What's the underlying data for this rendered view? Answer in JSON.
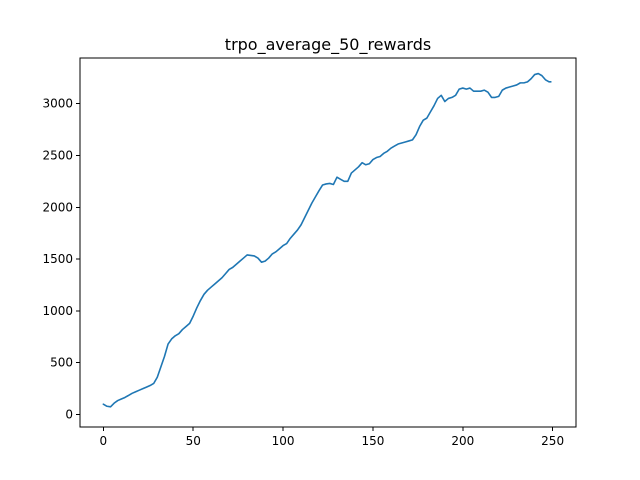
{
  "chart_data": {
    "type": "line",
    "title": "trpo_average_50_rewards",
    "xlabel": "",
    "ylabel": "",
    "xlim": [
      -13,
      263
    ],
    "ylim": [
      -120,
      3440
    ],
    "xticks": [
      0,
      50,
      100,
      150,
      200,
      250
    ],
    "yticks": [
      0,
      500,
      1000,
      1500,
      2000,
      2500,
      3000
    ],
    "grid": false,
    "legend": "none",
    "series": [
      {
        "color": "#1f77b4",
        "x": [
          0,
          2,
          4,
          6,
          8,
          10,
          12,
          14,
          16,
          18,
          20,
          22,
          24,
          26,
          28,
          30,
          32,
          34,
          36,
          38,
          40,
          42,
          44,
          46,
          48,
          50,
          52,
          54,
          56,
          58,
          60,
          62,
          64,
          66,
          68,
          70,
          72,
          74,
          76,
          78,
          80,
          82,
          84,
          86,
          88,
          90,
          92,
          94,
          96,
          98,
          100,
          102,
          104,
          106,
          108,
          110,
          112,
          114,
          116,
          118,
          120,
          122,
          124,
          126,
          128,
          130,
          132,
          134,
          136,
          138,
          140,
          142,
          144,
          146,
          148,
          150,
          152,
          154,
          156,
          158,
          160,
          162,
          164,
          166,
          168,
          170,
          172,
          174,
          176,
          178,
          180,
          182,
          184,
          186,
          188,
          190,
          192,
          194,
          196,
          198,
          200,
          202,
          204,
          206,
          208,
          210,
          212,
          214,
          216,
          218,
          220,
          222,
          224,
          226,
          228,
          230,
          232,
          234,
          236,
          238,
          240,
          242,
          244,
          246,
          248,
          249
        ],
        "y": [
          100,
          80,
          75,
          110,
          135,
          150,
          165,
          185,
          205,
          220,
          235,
          250,
          265,
          280,
          300,
          360,
          460,
          560,
          680,
          730,
          760,
          780,
          820,
          850,
          880,
          950,
          1030,
          1100,
          1160,
          1200,
          1230,
          1260,
          1290,
          1320,
          1360,
          1400,
          1420,
          1450,
          1480,
          1510,
          1540,
          1535,
          1530,
          1510,
          1470,
          1480,
          1510,
          1550,
          1570,
          1600,
          1630,
          1650,
          1700,
          1740,
          1780,
          1830,
          1900,
          1970,
          2040,
          2100,
          2160,
          2215,
          2225,
          2230,
          2220,
          2290,
          2270,
          2250,
          2250,
          2330,
          2360,
          2390,
          2430,
          2410,
          2420,
          2460,
          2480,
          2490,
          2520,
          2540,
          2570,
          2590,
          2610,
          2620,
          2630,
          2640,
          2650,
          2700,
          2780,
          2840,
          2860,
          2920,
          2980,
          3050,
          3080,
          3020,
          3050,
          3060,
          3080,
          3140,
          3150,
          3140,
          3150,
          3120,
          3120,
          3120,
          3130,
          3110,
          3060,
          3060,
          3070,
          3130,
          3150,
          3160,
          3170,
          3180,
          3200,
          3200,
          3210,
          3240,
          3280,
          3290,
          3270,
          3230,
          3210,
          3210
        ]
      }
    ]
  }
}
